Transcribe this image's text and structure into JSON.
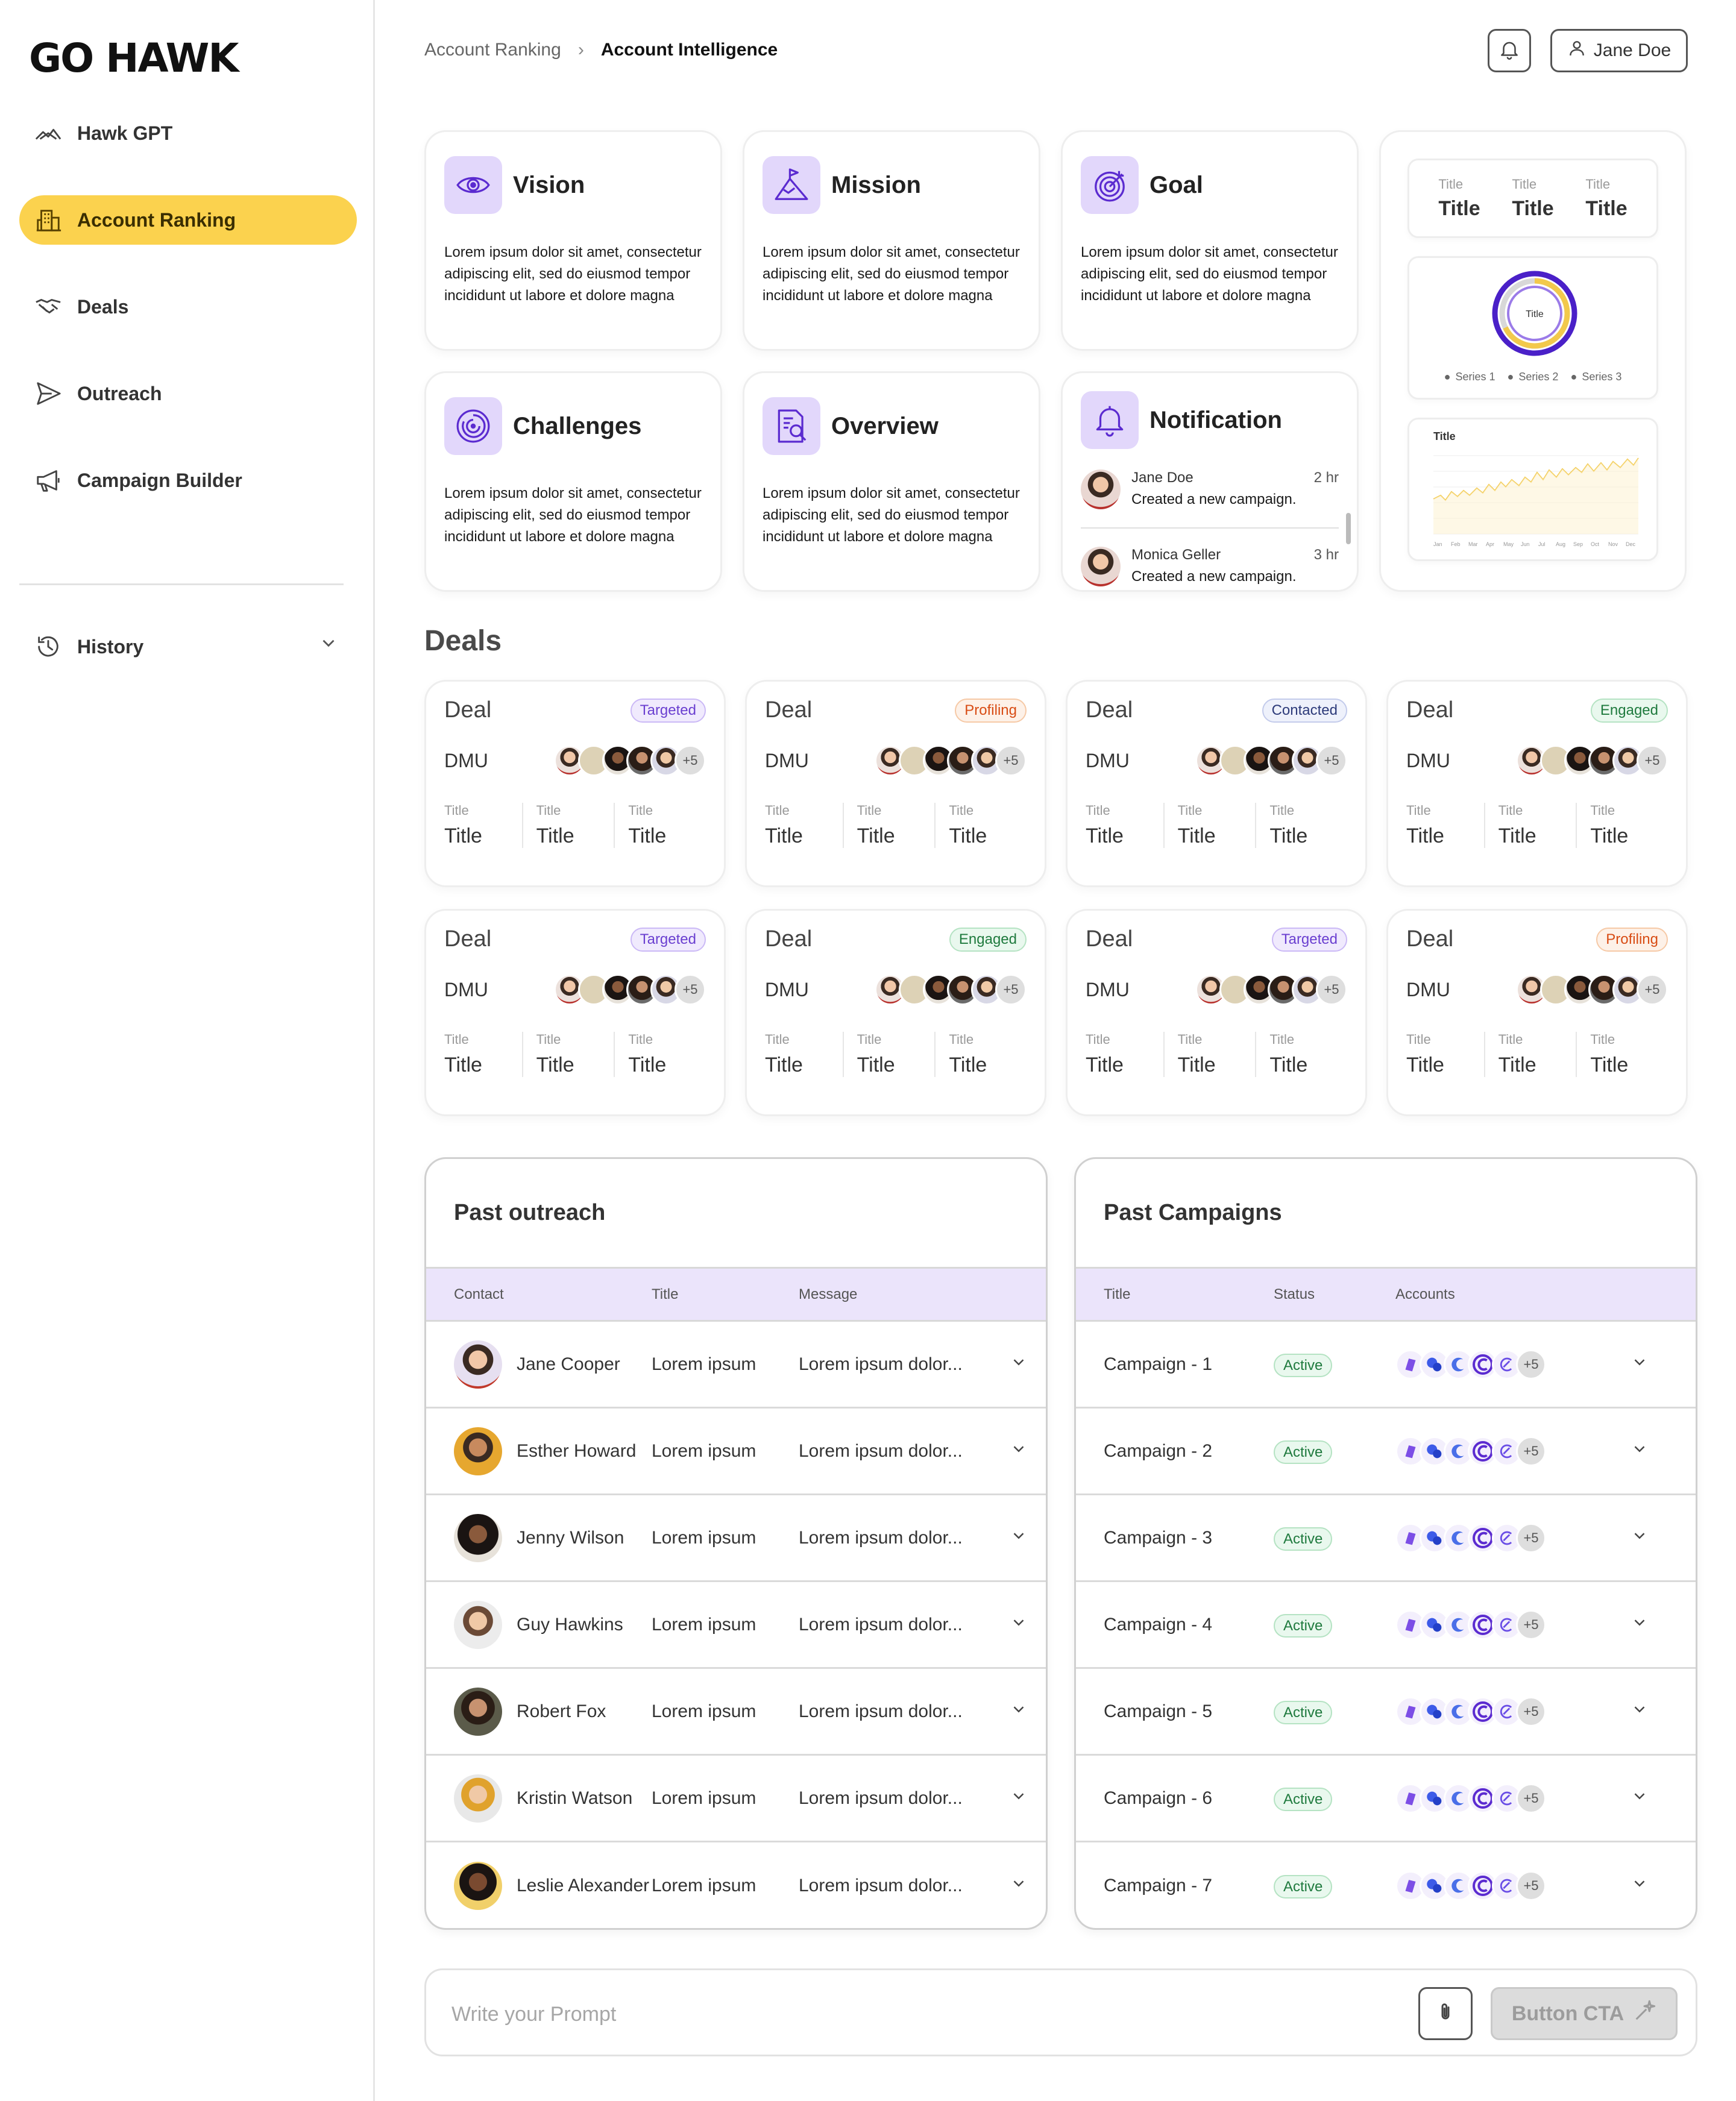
{
  "brand": {
    "logo": "GO HAWK"
  },
  "sidebar": {
    "items": [
      {
        "label": "Hawk GPT",
        "icon": "hawk-icon"
      },
      {
        "label": "Account Ranking",
        "icon": "building-icon",
        "active": true
      },
      {
        "label": "Deals",
        "icon": "handshake-icon"
      },
      {
        "label": "Outreach",
        "icon": "send-icon"
      },
      {
        "label": "Campaign Builder",
        "icon": "megaphone-icon"
      }
    ],
    "history": {
      "label": "History",
      "icon": "history-icon"
    }
  },
  "header": {
    "breadcrumb": [
      "Account Ranking",
      "Account Intelligence"
    ],
    "user_name": "Jane Doe"
  },
  "info_cards": [
    {
      "title": "Vision",
      "icon": "eye-icon",
      "body": "Lorem ipsum dolor sit amet, consectetur adipiscing elit, sed do eiusmod tempor incididunt ut labore et dolore magna"
    },
    {
      "title": "Mission",
      "icon": "mountain-flag-icon",
      "body": "Lorem ipsum dolor sit amet, consectetur adipiscing elit, sed do eiusmod tempor incididunt ut labore et dolore magna"
    },
    {
      "title": "Goal",
      "icon": "target-icon",
      "body": "Lorem ipsum dolor sit amet, consectetur adipiscing elit, sed do eiusmod tempor incididunt ut labore et dolore magna"
    },
    {
      "title": "Challenges",
      "icon": "maze-icon",
      "body": "Lorem ipsum dolor sit amet, consectetur adipiscing elit, sed do eiusmod tempor incididunt ut labore et dolore magna"
    },
    {
      "title": "Overview",
      "icon": "document-search-icon",
      "body": "Lorem ipsum dolor sit amet, consectetur adipiscing elit, sed do eiusmod tempor incididunt ut labore et dolore magna"
    }
  ],
  "notification": {
    "title": "Notification",
    "items": [
      {
        "name": "Jane Doe",
        "text": "Created a new campaign.",
        "time": "2 hr"
      },
      {
        "name": "Monica Geller",
        "text": "Created a new campaign.",
        "time": "3 hr"
      }
    ]
  },
  "stats_card": {
    "titles": [
      {
        "small": "Title",
        "big": "Title"
      },
      {
        "small": "Title",
        "big": "Title"
      },
      {
        "small": "Title",
        "big": "Title"
      }
    ],
    "donut": {
      "center_label": "Title",
      "series": [
        {
          "name": "Series 1",
          "color": "#f2c94c"
        },
        {
          "name": "Series 2",
          "color": "#9b7be8"
        },
        {
          "name": "Series 3",
          "color": "#4a20c8"
        }
      ]
    },
    "line": {
      "title": "Title",
      "months": [
        "Jan",
        "Feb",
        "Mar",
        "Apr",
        "May",
        "Jun",
        "Jul",
        "Aug",
        "Sep",
        "Oct",
        "Nov",
        "Dec"
      ],
      "color": "#f2c94c"
    }
  },
  "deals": {
    "title": "Deals",
    "cards": [
      {
        "name": "Deal",
        "status": "Targeted",
        "dmu": "DMU",
        "more": "+5"
      },
      {
        "name": "Deal",
        "status": "Profiling",
        "dmu": "DMU",
        "more": "+5"
      },
      {
        "name": "Deal",
        "status": "Contacted",
        "dmu": "DMU",
        "more": "+5"
      },
      {
        "name": "Deal",
        "status": "Engaged",
        "dmu": "DMU",
        "more": "+5"
      },
      {
        "name": "Deal",
        "status": "Targeted",
        "dmu": "DMU",
        "more": "+5"
      },
      {
        "name": "Deal",
        "status": "Engaged",
        "dmu": "DMU",
        "more": "+5"
      },
      {
        "name": "Deal",
        "status": "Targeted",
        "dmu": "DMU",
        "more": "+5"
      },
      {
        "name": "Deal",
        "status": "Profiling",
        "dmu": "DMU",
        "more": "+5"
      }
    ],
    "stat_small": "Title",
    "stat_big": "Title"
  },
  "past_outreach": {
    "title": "Past outreach",
    "columns": [
      "Contact",
      "Title",
      "Message"
    ],
    "rows": [
      {
        "contact": "Jane Cooper",
        "title": "Lorem ipsum",
        "message": "Lorem ipsum dolor..."
      },
      {
        "contact": "Esther Howard",
        "title": "Lorem ipsum",
        "message": "Lorem ipsum dolor..."
      },
      {
        "contact": "Jenny Wilson",
        "title": "Lorem ipsum",
        "message": "Lorem ipsum dolor..."
      },
      {
        "contact": "Guy Hawkins",
        "title": "Lorem ipsum",
        "message": "Lorem ipsum dolor..."
      },
      {
        "contact": "Robert Fox",
        "title": "Lorem ipsum",
        "message": "Lorem ipsum dolor..."
      },
      {
        "contact": "Kristin Watson",
        "title": "Lorem ipsum",
        "message": "Lorem ipsum dolor..."
      },
      {
        "contact": "Leslie Alexander",
        "title": "Lorem ipsum",
        "message": "Lorem ipsum dolor..."
      }
    ]
  },
  "past_campaigns": {
    "title": "Past Campaigns",
    "columns": [
      "Title",
      "Status",
      "Accounts"
    ],
    "rows": [
      {
        "title": "Campaign - 1",
        "status": "Active",
        "more": "+5"
      },
      {
        "title": "Campaign - 2",
        "status": "Active",
        "more": "+5"
      },
      {
        "title": "Campaign - 3",
        "status": "Active",
        "more": "+5"
      },
      {
        "title": "Campaign - 4",
        "status": "Active",
        "more": "+5"
      },
      {
        "title": "Campaign - 5",
        "status": "Active",
        "more": "+5"
      },
      {
        "title": "Campaign - 6",
        "status": "Active",
        "more": "+5"
      },
      {
        "title": "Campaign - 7",
        "status": "Active",
        "more": "+5"
      }
    ]
  },
  "prompt": {
    "placeholder": "Write your Prompt",
    "cta_label": "Button CTA"
  },
  "colors": {
    "accent_yellow": "#fbd24e",
    "accent_purple": "#6a3fd0",
    "icon_tile": "#e2d7fb",
    "table_header": "#ebe4fb"
  }
}
